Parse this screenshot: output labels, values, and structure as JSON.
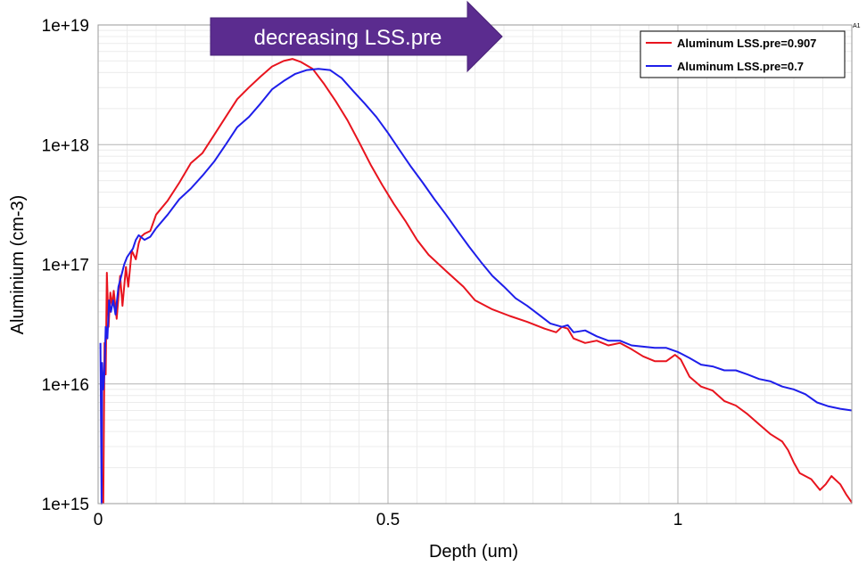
{
  "chart_data": {
    "type": "line",
    "y_scale": "log",
    "xlabel": "Depth (um)",
    "ylabel": "Aluminium (cm-3)",
    "xlim": [
      0,
      1.3
    ],
    "ylim": [
      1000000000000000.0,
      1e+19
    ],
    "x_ticks": [
      {
        "value": 0,
        "label": "0"
      },
      {
        "value": 0.5,
        "label": "0.5"
      },
      {
        "value": 1,
        "label": "1"
      }
    ],
    "y_ticks": [
      {
        "value": 1000000000000000.0,
        "label": "1e+15"
      },
      {
        "value": 1e+16,
        "label": "1e+16"
      },
      {
        "value": 1e+17,
        "label": "1e+17"
      },
      {
        "value": 1e+18,
        "label": "1e+18"
      },
      {
        "value": 1e+19,
        "label": "1e+19"
      }
    ],
    "grid": true,
    "legend_position": "top-right",
    "annotation": "decreasing LSS.pre",
    "corner_label": "A1",
    "series": [
      {
        "name": "Aluminum LSS.pre=0.907",
        "color": "#e8141e",
        "points": [
          [
            0.009,
            1000000000000000.0
          ],
          [
            0.011,
            2.2e+16
          ],
          [
            0.013,
            1.2e+16
          ],
          [
            0.015,
            8.5e+16
          ],
          [
            0.018,
            3e+16
          ],
          [
            0.021,
            5.8e+16
          ],
          [
            0.024,
            4.5e+16
          ],
          [
            0.027,
            6e+16
          ],
          [
            0.032,
            3.5e+16
          ],
          [
            0.038,
            8e+16
          ],
          [
            0.042,
            4.5e+16
          ],
          [
            0.048,
            9.5e+16
          ],
          [
            0.052,
            6.5e+16
          ],
          [
            0.058,
            1.3e+17
          ],
          [
            0.065,
            1.1e+17
          ],
          [
            0.07,
            1.5e+17
          ],
          [
            0.074,
            1.7e+17
          ],
          [
            0.08,
            1.8e+17
          ],
          [
            0.09,
            1.9e+17
          ],
          [
            0.1,
            2.6e+17
          ],
          [
            0.12,
            3.4e+17
          ],
          [
            0.14,
            4.8e+17
          ],
          [
            0.16,
            7e+17
          ],
          [
            0.18,
            8.5e+17
          ],
          [
            0.2,
            1.2e+18
          ],
          [
            0.22,
            1.7e+18
          ],
          [
            0.24,
            2.4e+18
          ],
          [
            0.26,
            3e+18
          ],
          [
            0.28,
            3.7e+18
          ],
          [
            0.3,
            4.5e+18
          ],
          [
            0.32,
            5e+18
          ],
          [
            0.335,
            5.2e+18
          ],
          [
            0.35,
            4.9e+18
          ],
          [
            0.37,
            4.3e+18
          ],
          [
            0.39,
            3.2e+18
          ],
          [
            0.41,
            2.3e+18
          ],
          [
            0.43,
            1.6e+18
          ],
          [
            0.45,
            1.05e+18
          ],
          [
            0.47,
            6.8e+17
          ],
          [
            0.49,
            4.6e+17
          ],
          [
            0.51,
            3.2e+17
          ],
          [
            0.53,
            2.3e+17
          ],
          [
            0.55,
            1.6e+17
          ],
          [
            0.57,
            1.2e+17
          ],
          [
            0.6,
            8.8e+16
          ],
          [
            0.63,
            6.5e+16
          ],
          [
            0.65,
            5e+16
          ],
          [
            0.68,
            4.2e+16
          ],
          [
            0.71,
            3.7e+16
          ],
          [
            0.74,
            3.3e+16
          ],
          [
            0.77,
            2.9e+16
          ],
          [
            0.79,
            2.7e+16
          ],
          [
            0.8,
            3e+16
          ],
          [
            0.81,
            2.9e+16
          ],
          [
            0.82,
            2.4e+16
          ],
          [
            0.84,
            2.2e+16
          ],
          [
            0.86,
            2.3e+16
          ],
          [
            0.88,
            2.1e+16
          ],
          [
            0.9,
            2.2e+16
          ],
          [
            0.92,
            1.95e+16
          ],
          [
            0.94,
            1.7e+16
          ],
          [
            0.96,
            1.55e+16
          ],
          [
            0.98,
            1.55e+16
          ],
          [
            0.995,
            1.75e+16
          ],
          [
            1.005,
            1.6e+16
          ],
          [
            1.02,
            1.15e+16
          ],
          [
            1.04,
            9500000000000000.0
          ],
          [
            1.06,
            8800000000000000.0
          ],
          [
            1.08,
            7200000000000000.0
          ],
          [
            1.1,
            6600000000000000.0
          ],
          [
            1.12,
            5600000000000000.0
          ],
          [
            1.14,
            4600000000000000.0
          ],
          [
            1.16,
            3800000000000000.0
          ],
          [
            1.18,
            3300000000000000.0
          ],
          [
            1.19,
            2800000000000000.0
          ],
          [
            1.2,
            2200000000000000.0
          ],
          [
            1.21,
            1800000000000000.0
          ],
          [
            1.23,
            1600000000000000.0
          ],
          [
            1.245,
            1300000000000000.0
          ],
          [
            1.255,
            1450000000000000.0
          ],
          [
            1.265,
            1700000000000000.0
          ],
          [
            1.28,
            1450000000000000.0
          ],
          [
            1.29,
            1200000000000000.0
          ],
          [
            1.3,
            1020000000000000.0
          ]
        ]
      },
      {
        "name": "Aluminum LSS.pre=0.7",
        "color": "#1e1eea",
        "points": [
          [
            0.004,
            2.2e+16
          ],
          [
            0.006,
            1000000000000000.0
          ],
          [
            0.007,
            1.5e+16
          ],
          [
            0.009,
            9000000000000000.0
          ],
          [
            0.011,
            1.3e+16
          ],
          [
            0.013,
            3e+16
          ],
          [
            0.016,
            2.4e+16
          ],
          [
            0.019,
            5e+16
          ],
          [
            0.022,
            4e+16
          ],
          [
            0.026,
            5e+16
          ],
          [
            0.03,
            3.8e+16
          ],
          [
            0.035,
            6.5e+16
          ],
          [
            0.04,
            8e+16
          ],
          [
            0.045,
            1e+17
          ],
          [
            0.05,
            1.15e+17
          ],
          [
            0.055,
            1.25e+17
          ],
          [
            0.06,
            1.35e+17
          ],
          [
            0.065,
            1.6e+17
          ],
          [
            0.07,
            1.75e+17
          ],
          [
            0.08,
            1.6e+17
          ],
          [
            0.09,
            1.7e+17
          ],
          [
            0.1,
            2e+17
          ],
          [
            0.12,
            2.6e+17
          ],
          [
            0.14,
            3.5e+17
          ],
          [
            0.16,
            4.3e+17
          ],
          [
            0.18,
            5.5e+17
          ],
          [
            0.2,
            7.2e+17
          ],
          [
            0.22,
            1e+18
          ],
          [
            0.24,
            1.4e+18
          ],
          [
            0.26,
            1.7e+18
          ],
          [
            0.28,
            2.2e+18
          ],
          [
            0.3,
            2.9e+18
          ],
          [
            0.32,
            3.4e+18
          ],
          [
            0.34,
            3.9e+18
          ],
          [
            0.36,
            4.2e+18
          ],
          [
            0.38,
            4.3e+18
          ],
          [
            0.4,
            4.2e+18
          ],
          [
            0.42,
            3.6e+18
          ],
          [
            0.44,
            2.8e+18
          ],
          [
            0.46,
            2.2e+18
          ],
          [
            0.48,
            1.7e+18
          ],
          [
            0.5,
            1.25e+18
          ],
          [
            0.52,
            9e+17
          ],
          [
            0.54,
            6.5e+17
          ],
          [
            0.56,
            4.8e+17
          ],
          [
            0.58,
            3.5e+17
          ],
          [
            0.6,
            2.6e+17
          ],
          [
            0.62,
            1.9e+17
          ],
          [
            0.64,
            1.4e+17
          ],
          [
            0.66,
            1.05e+17
          ],
          [
            0.68,
            8e+16
          ],
          [
            0.7,
            6.5e+16
          ],
          [
            0.72,
            5.2e+16
          ],
          [
            0.74,
            4.5e+16
          ],
          [
            0.76,
            3.8e+16
          ],
          [
            0.78,
            3.2e+16
          ],
          [
            0.8,
            3e+16
          ],
          [
            0.81,
            3.1e+16
          ],
          [
            0.82,
            2.7e+16
          ],
          [
            0.84,
            2.8e+16
          ],
          [
            0.86,
            2.5e+16
          ],
          [
            0.88,
            2.3e+16
          ],
          [
            0.9,
            2.3e+16
          ],
          [
            0.92,
            2.1e+16
          ],
          [
            0.94,
            2.05e+16
          ],
          [
            0.96,
            2e+16
          ],
          [
            0.98,
            2e+16
          ],
          [
            1,
            1.85e+16
          ],
          [
            1.02,
            1.65e+16
          ],
          [
            1.04,
            1.45e+16
          ],
          [
            1.06,
            1.4e+16
          ],
          [
            1.08,
            1.3e+16
          ],
          [
            1.1,
            1.3e+16
          ],
          [
            1.12,
            1.2e+16
          ],
          [
            1.14,
            1.1e+16
          ],
          [
            1.16,
            1.05e+16
          ],
          [
            1.18,
            9500000000000000.0
          ],
          [
            1.2,
            9000000000000000.0
          ],
          [
            1.22,
            8200000000000000.0
          ],
          [
            1.24,
            7000000000000000.0
          ],
          [
            1.26,
            6500000000000000.0
          ],
          [
            1.28,
            6200000000000000.0
          ],
          [
            1.3,
            6000000000000000.0
          ]
        ]
      }
    ]
  }
}
